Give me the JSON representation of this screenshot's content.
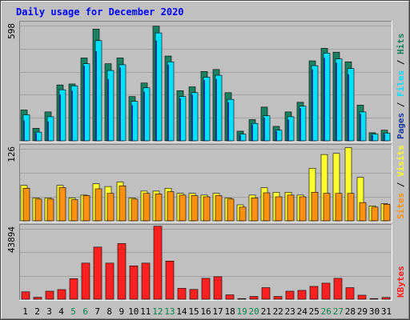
{
  "chart_data": {
    "type": "bar",
    "title": "Daily usage for December 2020",
    "categories": [
      "1",
      "2",
      "3",
      "4",
      "5",
      "6",
      "7",
      "8",
      "9",
      "10",
      "11",
      "12",
      "13",
      "14",
      "15",
      "16",
      "17",
      "18",
      "19",
      "20",
      "21",
      "22",
      "23",
      "24",
      "25",
      "26",
      "27",
      "28",
      "29",
      "30",
      "31"
    ],
    "weekend_days": [
      "5",
      "6",
      "12",
      "13",
      "19",
      "20",
      "26",
      "27"
    ],
    "colors": {
      "title": "#0000ff",
      "hits": "#1a8060",
      "files": "#00e0ff",
      "pages": "#1a3a9a",
      "visits": "#ffff30",
      "sites": "#ff9010",
      "kbytes": "#ff2020",
      "weekend_label": "#00804a",
      "weekday_label": "#000000",
      "plot_bg": "#c0c0c0",
      "grid": "#a0a0a0"
    },
    "panels": [
      {
        "name": "hits-files-pages",
        "max_label": "598",
        "ylim": [
          0,
          598
        ],
        "legend": [
          {
            "text": "Hits",
            "color": "#1a8060"
          },
          {
            "text": "Files",
            "color": "#00e0ff"
          },
          {
            "text": "Pages",
            "color": "#1a3a9a"
          }
        ],
        "separator": " / ",
        "series": [
          {
            "name": "Hits",
            "values": [
              160,
              65,
              150,
              290,
              295,
              430,
              580,
              400,
              430,
              230,
              300,
              595,
              440,
              260,
              280,
              360,
              370,
              250,
              50,
              110,
              175,
              75,
              150,
              200,
              415,
              480,
              460,
              410,
              185,
              42,
              55
            ]
          },
          {
            "name": "Files",
            "values": [
              135,
              45,
              125,
              265,
              285,
              400,
              520,
              365,
              395,
              205,
              275,
              560,
              410,
              230,
              250,
              330,
              340,
              215,
              35,
              90,
              130,
              55,
              125,
              180,
              390,
              455,
              425,
              375,
              150,
              35,
              40
            ]
          },
          {
            "name": "Pages",
            "values": [
              105,
              40,
              100,
              240,
              260,
              390,
              465,
              320,
              380,
              185,
              255,
              520,
              395,
              220,
              240,
              315,
              320,
              200,
              30,
              85,
              120,
              50,
              110,
              170,
              370,
              430,
              405,
              345,
              140,
              30,
              35
            ]
          }
        ]
      },
      {
        "name": "visits-sites",
        "max_label": "126",
        "ylim": [
          0,
          126
        ],
        "legend": [
          {
            "text": "Visits",
            "color": "#ffff30"
          },
          {
            "text": "Sites",
            "color": "#ff9010"
          }
        ],
        "separator": " / ",
        "series": [
          {
            "name": "Visits",
            "values": [
              62,
              40,
              40,
              62,
              40,
              45,
              65,
              60,
              68,
              40,
              52,
              52,
              57,
              48,
              48,
              45,
              48,
              40,
              28,
              45,
              58,
              50,
              50,
              45,
              92,
              116,
              118,
              128,
              76,
              26,
              30
            ]
          },
          {
            "name": "Sites",
            "values": [
              57,
              38,
              38,
              58,
              37,
              44,
              56,
              48,
              61,
              38,
              48,
              47,
              51,
              45,
              44,
              42,
              44,
              38,
              24,
              40,
              49,
              42,
              45,
              42,
              50,
              48,
              48,
              48,
              32,
              24,
              29
            ]
          }
        ]
      },
      {
        "name": "kbytes",
        "max_label": "43894",
        "ylim": [
          0,
          43894
        ],
        "legend": [
          {
            "text": "KBytes",
            "color": "#ff2020"
          }
        ],
        "separator": "",
        "series": [
          {
            "name": "KBytes",
            "values": [
              4600,
              1200,
              5000,
              6000,
              12800,
              22500,
              32500,
              22500,
              34700,
              20800,
              22500,
              45500,
              23800,
              6800,
              6100,
              13000,
              14000,
              2700,
              400,
              1700,
              7200,
              1700,
              5000,
              5500,
              8000,
              10000,
              13000,
              7200,
              2500,
              400,
              1100
            ]
          }
        ]
      }
    ]
  }
}
